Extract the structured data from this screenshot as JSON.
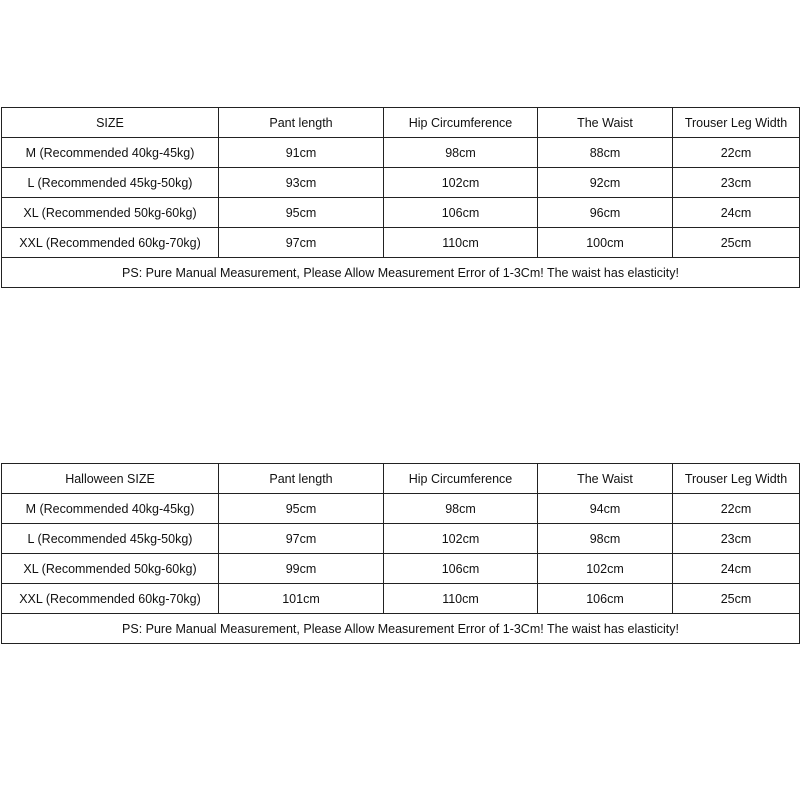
{
  "tables": [
    {
      "headers": [
        "SIZE",
        "Pant length",
        "Hip Circumference",
        "The Waist",
        "Trouser Leg Width"
      ],
      "rows": [
        [
          "M  (Recommended 40kg-45kg)",
          "91cm",
          "98cm",
          "88cm",
          "22cm"
        ],
        [
          "L  (Recommended 45kg-50kg)",
          "93cm",
          "102cm",
          "92cm",
          "23cm"
        ],
        [
          "XL  (Recommended 50kg-60kg)",
          "95cm",
          "106cm",
          "96cm",
          "24cm"
        ],
        [
          "XXL  (Recommended 60kg-70kg)",
          "97cm",
          "110cm",
          "100cm",
          "25cm"
        ]
      ],
      "note": "PS:  Pure Manual Measurement, Please Allow Measurement Error of 1-3Cm! The waist has elasticity!"
    },
    {
      "headers": [
        "Halloween SIZE",
        "Pant length",
        "Hip Circumference",
        "The Waist",
        "Trouser Leg Width"
      ],
      "rows": [
        [
          "M  (Recommended 40kg-45kg)",
          "95cm",
          "98cm",
          "94cm",
          "22cm"
        ],
        [
          "L  (Recommended 45kg-50kg)",
          "97cm",
          "102cm",
          "98cm",
          "23cm"
        ],
        [
          "XL  (Recommended 50kg-60kg)",
          "99cm",
          "106cm",
          "102cm",
          "24cm"
        ],
        [
          "XXL  (Recommended 60kg-70kg)",
          "101cm",
          "110cm",
          "106cm",
          "25cm"
        ]
      ],
      "note": "PS:  Pure Manual Measurement, Please Allow Measurement Error of 1-3Cm! The waist has elasticity!"
    }
  ]
}
